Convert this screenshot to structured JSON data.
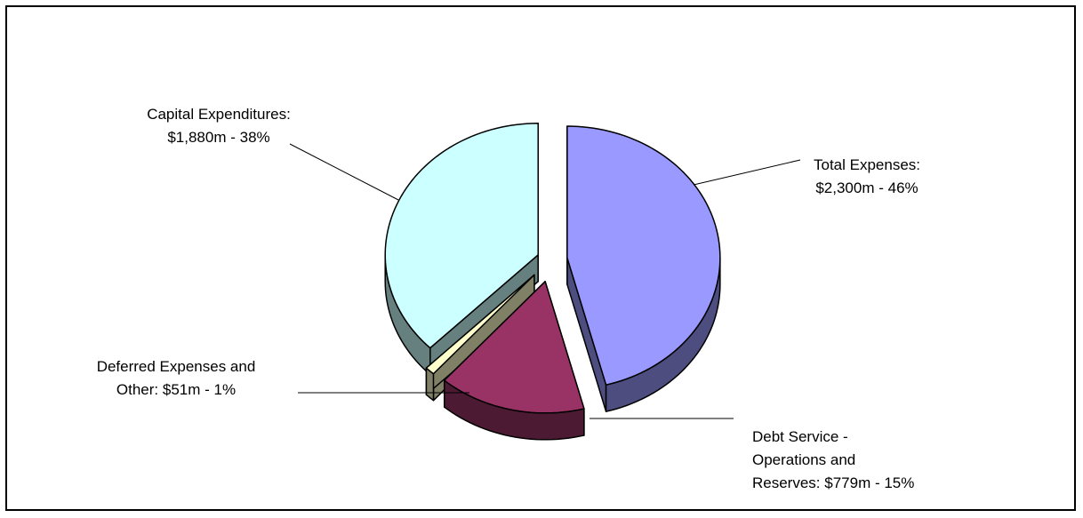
{
  "chart_data": {
    "type": "pie",
    "style": "3d-exploded",
    "slices": [
      {
        "key": "total-expenses",
        "name": "Total Expenses",
        "value": 2300,
        "percent": 46,
        "label_lines": [
          "Total Expenses:",
          "$2,300m - 46%"
        ],
        "top_color": "#9999ff",
        "side_color": "#4d4d80"
      },
      {
        "key": "debt-service",
        "name": "Debt Service - Operations and Reserves",
        "value": 779,
        "percent": 15,
        "label_lines": [
          "Debt Service -",
          "Operations and",
          "Reserves: $779m - 15%"
        ],
        "top_color": "#993366",
        "side_color": "#4d1a33"
      },
      {
        "key": "deferred-expenses",
        "name": "Deferred Expenses and Other",
        "value": 51,
        "percent": 1,
        "label_lines": [
          "Deferred Expenses and",
          "Other: $51m - 1%"
        ],
        "top_color": "#ffffcc",
        "side_color": "#808066"
      },
      {
        "key": "capital-expenditures",
        "name": "Capital Expenditures",
        "value": 1880,
        "percent": 38,
        "label_lines": [
          "Capital Expenditures:",
          "$1,880m - 38%"
        ],
        "top_color": "#ccffff",
        "side_color": "#668080"
      }
    ],
    "legend": "none",
    "outline_color": "#000000"
  }
}
